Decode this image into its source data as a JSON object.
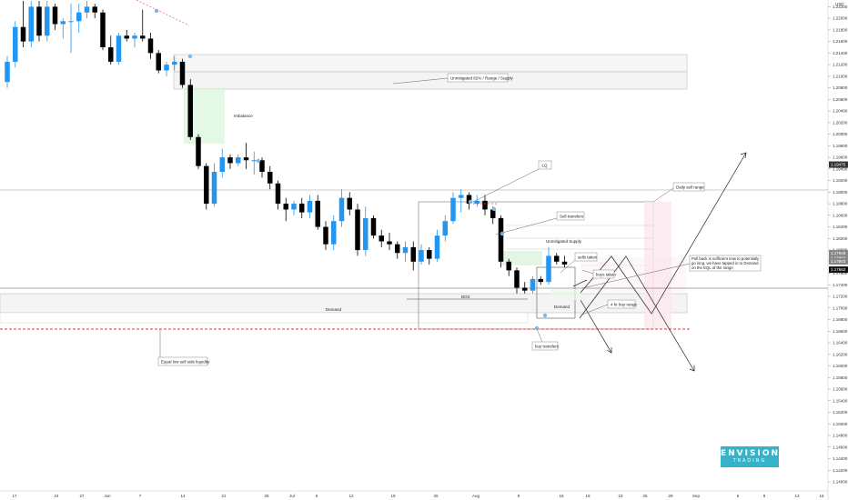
{
  "chart_data": {
    "type": "candlestick",
    "currency": "USD",
    "y_ticks": [
      "1.22200",
      "1.22000",
      "1.21800",
      "1.21600",
      "1.21400",
      "1.21200",
      "1.21000",
      "1.20800",
      "1.20600",
      "1.20400",
      "1.20200",
      "1.20000",
      "1.19800",
      "1.19600",
      "1.19400",
      "1.19200",
      "1.19000",
      "1.18800",
      "1.18600",
      "1.18400",
      "1.18200",
      "1.18000",
      "1.17800",
      "1.17600",
      "1.17400",
      "1.17200",
      "1.17000",
      "1.16800",
      "1.16600",
      "1.16400",
      "1.16200",
      "1.16000",
      "1.15800",
      "1.15600",
      "1.15400",
      "1.15200",
      "1.15000",
      "1.14800",
      "1.14600",
      "1.14400",
      "1.14200",
      "1.14000"
    ],
    "x_ticks": [
      "17",
      "24",
      "27",
      "Jun",
      "7",
      "14",
      "21",
      "28",
      "Jul",
      "6",
      "12",
      "19",
      "26",
      "Aug",
      "9",
      "16",
      "19",
      "23",
      "26",
      "29",
      "Sep",
      "6",
      "9",
      "13",
      "16"
    ],
    "price_labels": [
      "1.19475",
      "1.17948",
      "1.17863",
      "1.17803",
      "1.17662"
    ],
    "candles": [
      {
        "o": 1.209,
        "h": 1.2135,
        "l": 1.208,
        "c": 1.2125
      },
      {
        "o": 1.2125,
        "h": 1.2195,
        "l": 1.2115,
        "c": 1.2185
      },
      {
        "o": 1.2185,
        "h": 1.223,
        "l": 1.215,
        "c": 1.216
      },
      {
        "o": 1.216,
        "h": 1.223,
        "l": 1.215,
        "c": 1.222
      },
      {
        "o": 1.222,
        "h": 1.223,
        "l": 1.216,
        "c": 1.217
      },
      {
        "o": 1.217,
        "h": 1.223,
        "l": 1.216,
        "c": 1.222
      },
      {
        "o": 1.222,
        "h": 1.2225,
        "l": 1.218,
        "c": 1.219
      },
      {
        "o": 1.219,
        "h": 1.22,
        "l": 1.2165,
        "c": 1.2195
      },
      {
        "o": 1.2195,
        "h": 1.2225,
        "l": 1.214,
        "c": 1.2195
      },
      {
        "o": 1.2195,
        "h": 1.2225,
        "l": 1.2175,
        "c": 1.221
      },
      {
        "o": 1.221,
        "h": 1.223,
        "l": 1.22,
        "c": 1.222
      },
      {
        "o": 1.222,
        "h": 1.2225,
        "l": 1.22,
        "c": 1.221
      },
      {
        "o": 1.221,
        "h": 1.2215,
        "l": 1.2145,
        "c": 1.215
      },
      {
        "o": 1.215,
        "h": 1.217,
        "l": 1.212,
        "c": 1.2125
      },
      {
        "o": 1.2125,
        "h": 1.2175,
        "l": 1.212,
        "c": 1.217
      },
      {
        "o": 1.217,
        "h": 1.218,
        "l": 1.216,
        "c": 1.2165
      },
      {
        "o": 1.2165,
        "h": 1.2175,
        "l": 1.215,
        "c": 1.217
      },
      {
        "o": 1.217,
        "h": 1.2215,
        "l": 1.216,
        "c": 1.2165
      },
      {
        "o": 1.2165,
        "h": 1.2175,
        "l": 1.213,
        "c": 1.214
      },
      {
        "o": 1.214,
        "h": 1.2145,
        "l": 1.2105,
        "c": 1.211
      },
      {
        "o": 1.211,
        "h": 1.2125,
        "l": 1.21,
        "c": 1.212
      },
      {
        "o": 1.212,
        "h": 1.2135,
        "l": 1.211,
        "c": 1.2125
      },
      {
        "o": 1.2125,
        "h": 1.213,
        "l": 1.208,
        "c": 1.2085
      },
      {
        "o": 1.2085,
        "h": 1.2095,
        "l": 1.199,
        "c": 1.1995
      },
      {
        "o": 1.1995,
        "h": 1.2,
        "l": 1.194,
        "c": 1.1945
      },
      {
        "o": 1.1945,
        "h": 1.195,
        "l": 1.187,
        "c": 1.188
      },
      {
        "o": 1.188,
        "h": 1.195,
        "l": 1.1875,
        "c": 1.1935
      },
      {
        "o": 1.1935,
        "h": 1.1975,
        "l": 1.1925,
        "c": 1.196
      },
      {
        "o": 1.196,
        "h": 1.1965,
        "l": 1.194,
        "c": 1.195
      },
      {
        "o": 1.195,
        "h": 1.1965,
        "l": 1.1945,
        "c": 1.196
      },
      {
        "o": 1.196,
        "h": 1.1985,
        "l": 1.194,
        "c": 1.1955
      },
      {
        "o": 1.1955,
        "h": 1.197,
        "l": 1.193,
        "c": 1.1955
      },
      {
        "o": 1.1955,
        "h": 1.196,
        "l": 1.1925,
        "c": 1.1935
      },
      {
        "o": 1.1935,
        "h": 1.1945,
        "l": 1.1905,
        "c": 1.1915
      },
      {
        "o": 1.1915,
        "h": 1.192,
        "l": 1.187,
        "c": 1.188
      },
      {
        "o": 1.188,
        "h": 1.189,
        "l": 1.185,
        "c": 1.187
      },
      {
        "o": 1.187,
        "h": 1.1885,
        "l": 1.186,
        "c": 1.188
      },
      {
        "o": 1.188,
        "h": 1.189,
        "l": 1.1855,
        "c": 1.1865
      },
      {
        "o": 1.1865,
        "h": 1.1895,
        "l": 1.1855,
        "c": 1.1885
      },
      {
        "o": 1.1885,
        "h": 1.1895,
        "l": 1.1835,
        "c": 1.184
      },
      {
        "o": 1.184,
        "h": 1.185,
        "l": 1.18,
        "c": 1.181
      },
      {
        "o": 1.181,
        "h": 1.186,
        "l": 1.18,
        "c": 1.185
      },
      {
        "o": 1.185,
        "h": 1.1905,
        "l": 1.184,
        "c": 1.189
      },
      {
        "o": 1.189,
        "h": 1.19,
        "l": 1.186,
        "c": 1.187
      },
      {
        "o": 1.187,
        "h": 1.188,
        "l": 1.179,
        "c": 1.18
      },
      {
        "o": 1.18,
        "h": 1.1875,
        "l": 1.179,
        "c": 1.1855
      },
      {
        "o": 1.1855,
        "h": 1.186,
        "l": 1.182,
        "c": 1.1825
      },
      {
        "o": 1.1825,
        "h": 1.1835,
        "l": 1.1805,
        "c": 1.1815
      },
      {
        "o": 1.1815,
        "h": 1.183,
        "l": 1.18,
        "c": 1.181
      },
      {
        "o": 1.181,
        "h": 1.1815,
        "l": 1.1785,
        "c": 1.1795
      },
      {
        "o": 1.1795,
        "h": 1.1815,
        "l": 1.178,
        "c": 1.1805
      },
      {
        "o": 1.1805,
        "h": 1.1815,
        "l": 1.1765,
        "c": 1.178
      },
      {
        "o": 1.178,
        "h": 1.181,
        "l": 1.1775,
        "c": 1.18
      },
      {
        "o": 1.18,
        "h": 1.1805,
        "l": 1.1775,
        "c": 1.1785
      },
      {
        "o": 1.1785,
        "h": 1.1835,
        "l": 1.178,
        "c": 1.1825
      },
      {
        "o": 1.1825,
        "h": 1.186,
        "l": 1.1815,
        "c": 1.185
      },
      {
        "o": 1.185,
        "h": 1.19,
        "l": 1.1845,
        "c": 1.189
      },
      {
        "o": 1.189,
        "h": 1.1905,
        "l": 1.1865,
        "c": 1.1895
      },
      {
        "o": 1.1895,
        "h": 1.19,
        "l": 1.187,
        "c": 1.188
      },
      {
        "o": 1.188,
        "h": 1.1895,
        "l": 1.1875,
        "c": 1.1885
      },
      {
        "o": 1.1885,
        "h": 1.1895,
        "l": 1.186,
        "c": 1.187
      },
      {
        "o": 1.187,
        "h": 1.1875,
        "l": 1.1845,
        "c": 1.1855
      },
      {
        "o": 1.1855,
        "h": 1.186,
        "l": 1.177,
        "c": 1.178
      },
      {
        "o": 1.178,
        "h": 1.1785,
        "l": 1.1755,
        "c": 1.1765
      },
      {
        "o": 1.1765,
        "h": 1.177,
        "l": 1.1725,
        "c": 1.1735
      },
      {
        "o": 1.1735,
        "h": 1.1745,
        "l": 1.1725,
        "c": 1.173
      },
      {
        "o": 1.173,
        "h": 1.1755,
        "l": 1.1725,
        "c": 1.175
      },
      {
        "o": 1.175,
        "h": 1.1755,
        "l": 1.174,
        "c": 1.1745
      },
      {
        "o": 1.1745,
        "h": 1.1805,
        "l": 1.174,
        "c": 1.179
      },
      {
        "o": 1.179,
        "h": 1.1795,
        "l": 1.1775,
        "c": 1.178
      },
      {
        "o": 1.178,
        "h": 1.179,
        "l": 1.177,
        "c": 1.1775
      }
    ],
    "annotations": [
      "Unmitigated 82% / Range / Supply",
      "Imbalance",
      "Daily sell range",
      "LQ",
      "Sell transfers",
      "Unmitigated Supply",
      "sells taken",
      "Pull back is sufficient now to potentially go long, we have tapped in to Demand on the EQL of the range",
      "buys taken",
      "4 hr buy range",
      "BOS",
      "Demand",
      "Demand",
      "buy transfers",
      "Equal low sell side liquidity"
    ]
  },
  "brand": {
    "title": "ENVISION",
    "subtitle": "TRADING",
    "color": "#36b3c9"
  },
  "colors": {
    "bull": "#2196f3",
    "bear": "#000000",
    "marker": "#7fb8e6"
  }
}
